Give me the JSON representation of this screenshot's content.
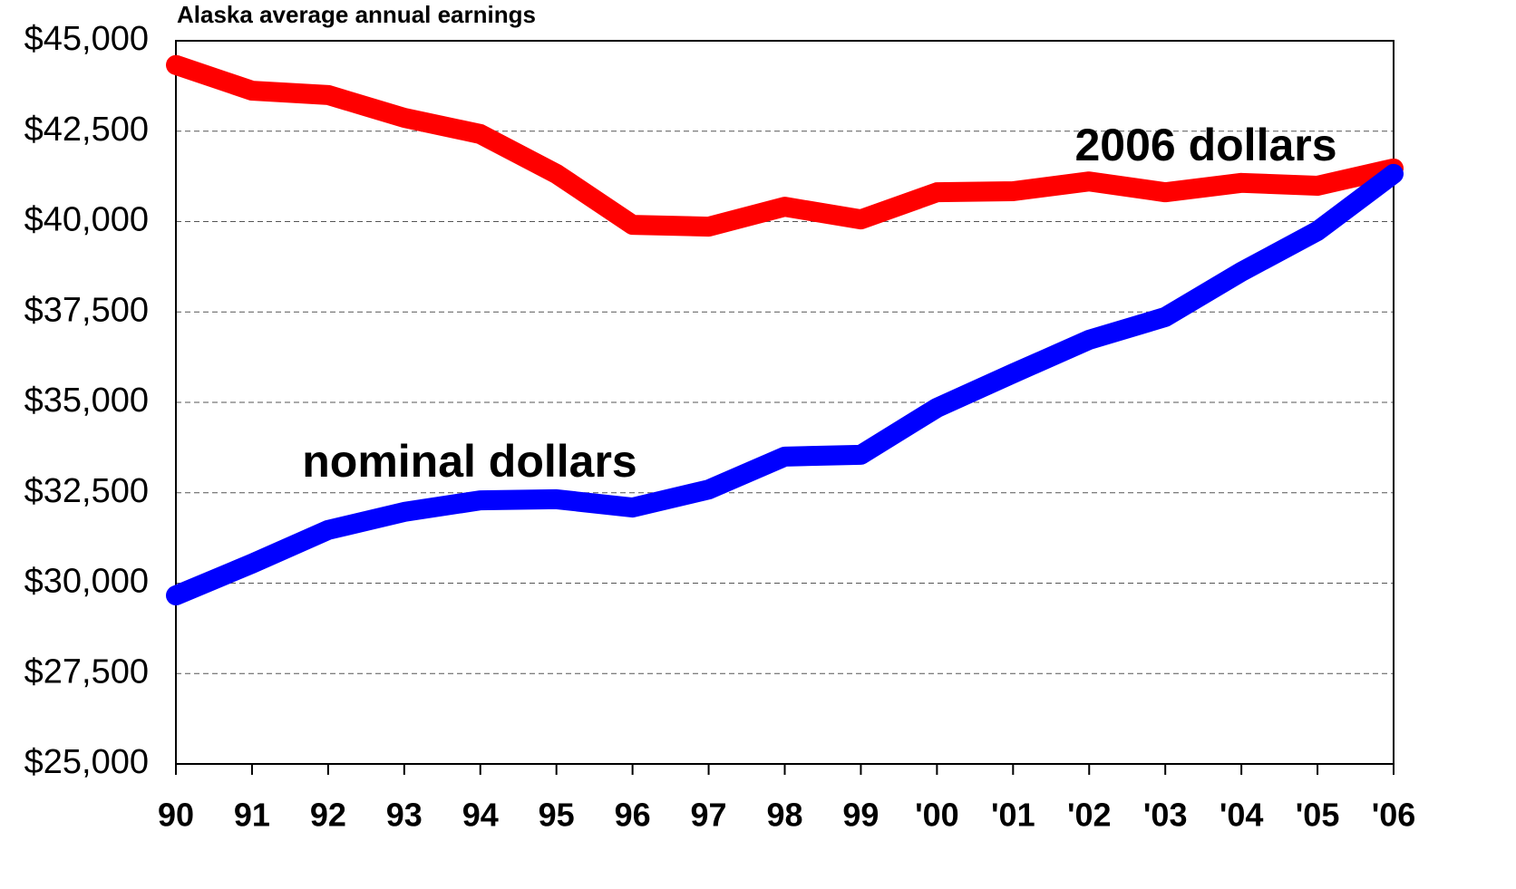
{
  "chart_data": {
    "type": "line",
    "title": "Alaska average annual earnings",
    "categories": [
      "90",
      "91",
      "92",
      "93",
      "94",
      "95",
      "96",
      "97",
      "98",
      "99",
      "'00",
      "'01",
      "'02",
      "'03",
      "'04",
      "'05",
      "'06"
    ],
    "series": [
      {
        "name": "2006 dollars",
        "color": "#ff0000",
        "values": [
          44330,
          43620,
          43500,
          42870,
          42420,
          41320,
          39910,
          39860,
          40410,
          40060,
          40810,
          40840,
          41110,
          40810,
          41070,
          40990,
          41470
        ]
      },
      {
        "name": "nominal dollars",
        "color": "#0000ff",
        "values": [
          29660,
          30540,
          31470,
          31970,
          32290,
          32320,
          32090,
          32590,
          33500,
          33550,
          34850,
          35800,
          36730,
          37360,
          38610,
          39740,
          41320
        ]
      }
    ],
    "ylim": [
      25000,
      45000
    ],
    "yticks": [
      {
        "value": 25000,
        "label": "$25,000"
      },
      {
        "value": 27500,
        "label": "$27,500"
      },
      {
        "value": 30000,
        "label": "$30,000"
      },
      {
        "value": 32500,
        "label": "$32,500"
      },
      {
        "value": 35000,
        "label": "$35,000"
      },
      {
        "value": 37500,
        "label": "$37,500"
      },
      {
        "value": 40000,
        "label": "$40,000"
      },
      {
        "value": 42500,
        "label": "$42,500"
      },
      {
        "value": 45000,
        "label": "$45,000"
      }
    ],
    "grid": true
  }
}
